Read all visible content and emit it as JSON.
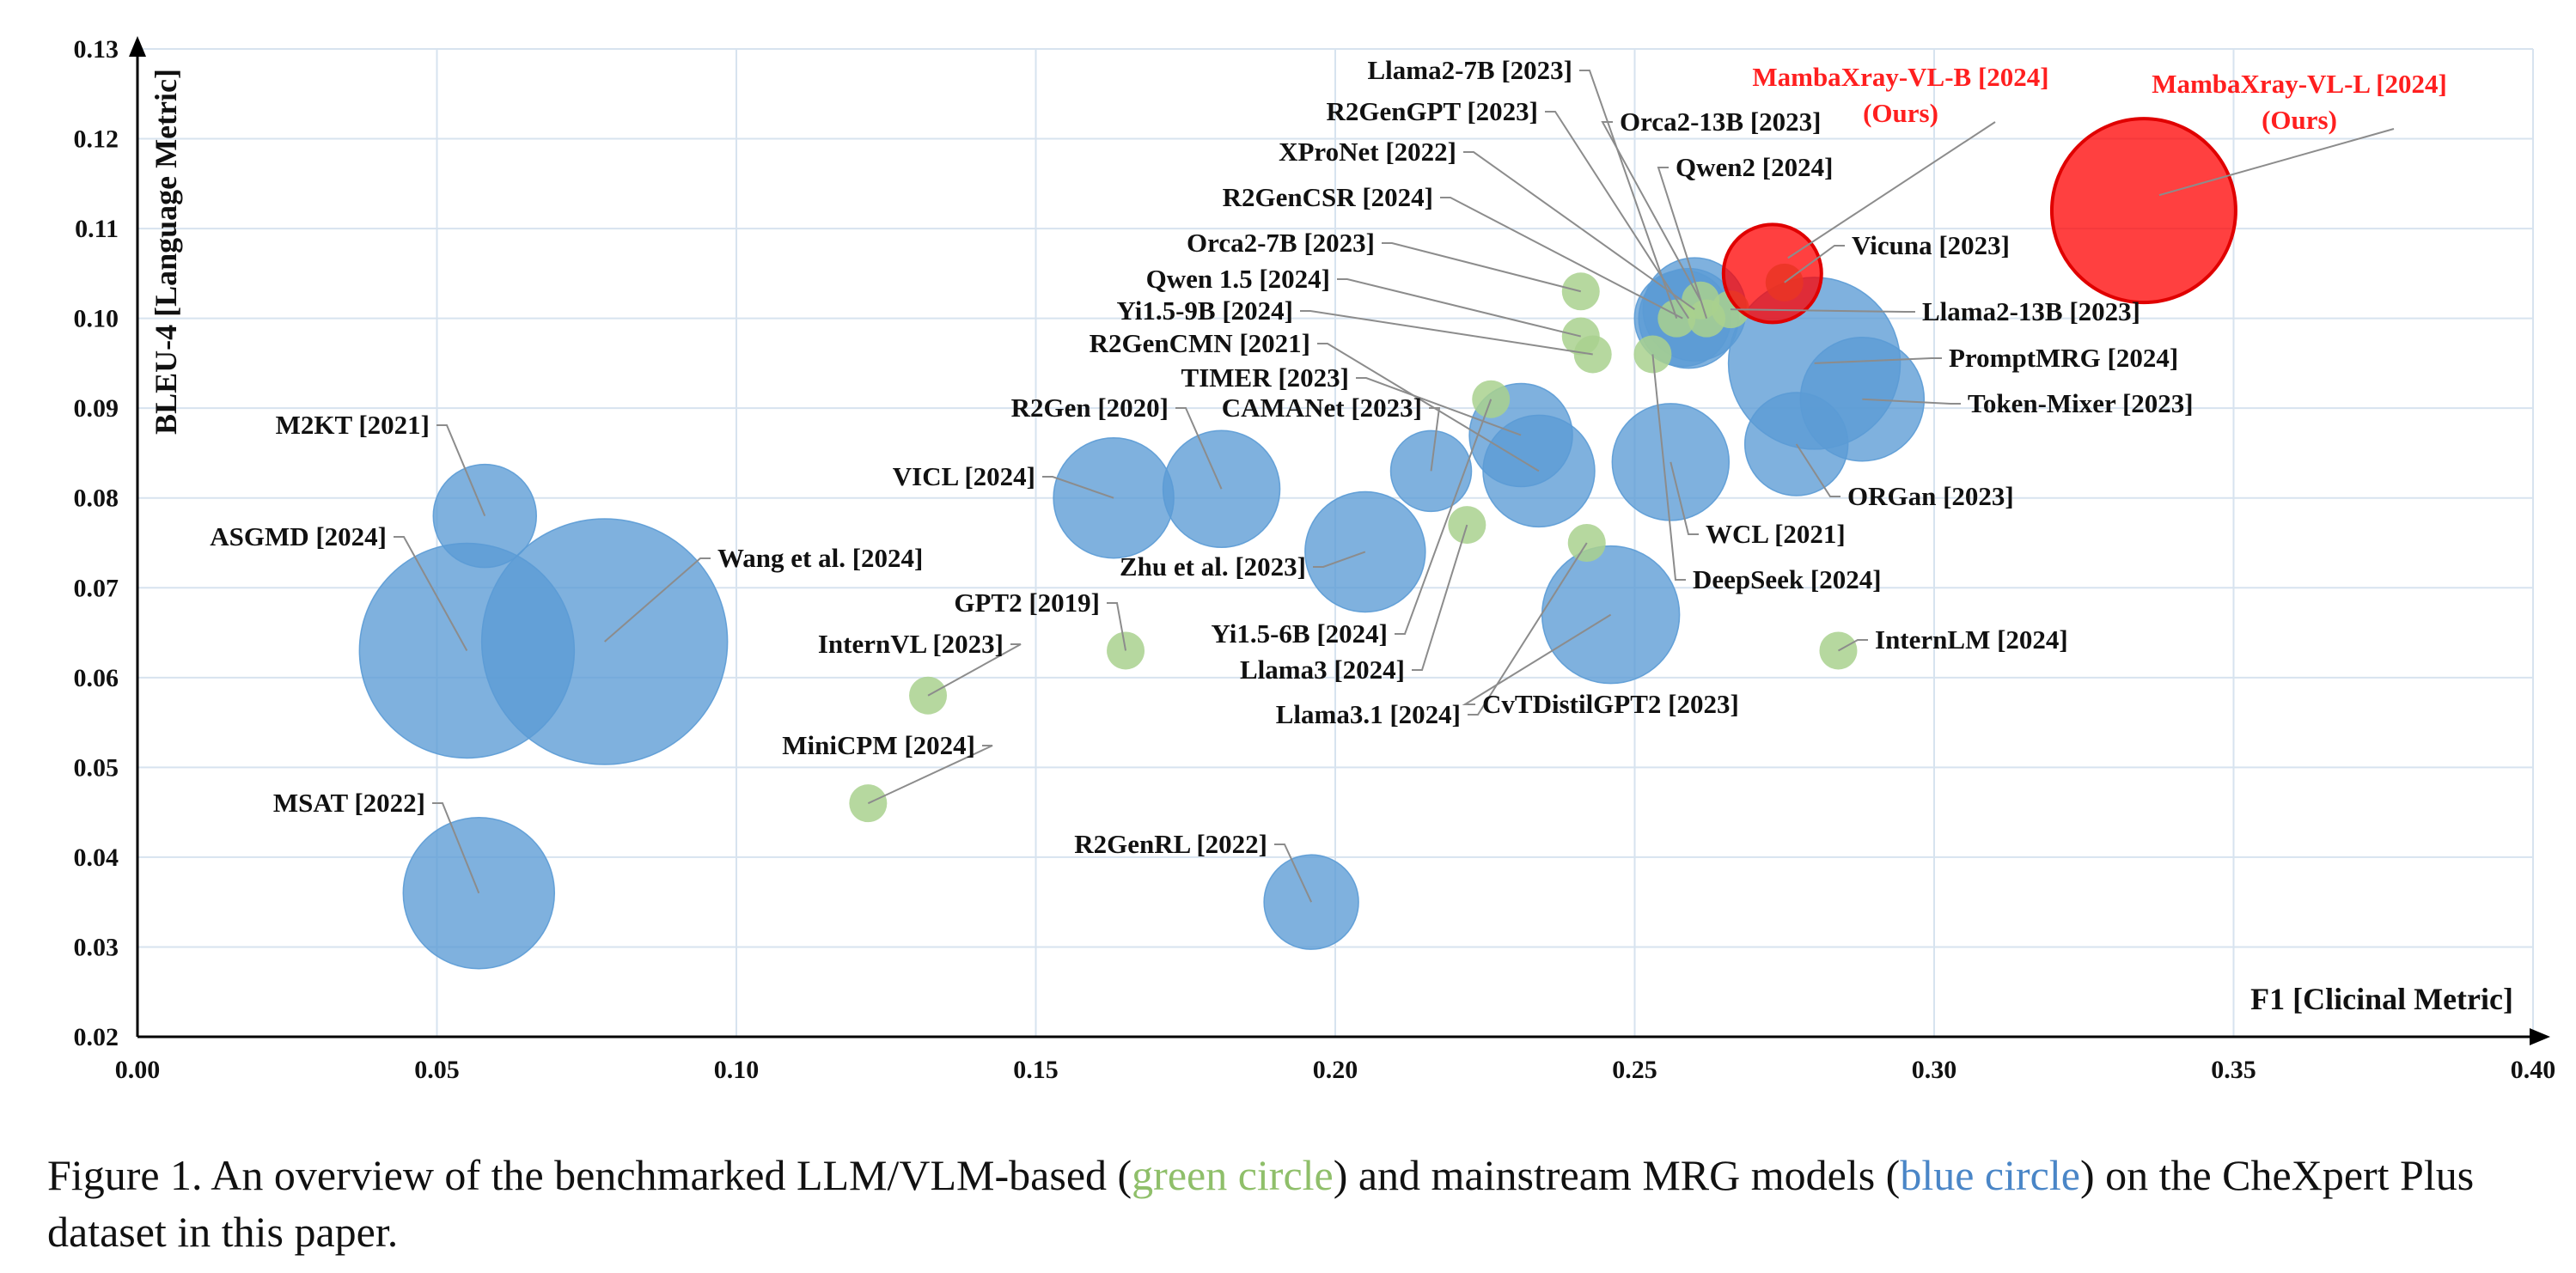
{
  "chart_data": {
    "type": "scatter",
    "xlabel": "F1 [Clicinal Metric]",
    "ylabel": "BLEU-4 [Language Metric]",
    "xlim": [
      0.0,
      0.4
    ],
    "ylim": [
      0.02,
      0.13
    ],
    "xticks": [
      "0.00",
      "0.05",
      "0.10",
      "0.15",
      "0.20",
      "0.25",
      "0.30",
      "0.35",
      "0.40"
    ],
    "yticks": [
      "0.02",
      "0.03",
      "0.04",
      "0.05",
      "0.06",
      "0.07",
      "0.08",
      "0.09",
      "0.10",
      "0.11",
      "0.12",
      "0.13"
    ],
    "grid": true,
    "colors": {
      "green": "#a9d18e",
      "blue": "#5b9bd5",
      "red": "#ff0000"
    },
    "points": [
      {
        "label": "M2KT [2021]",
        "x": 0.058,
        "y": 0.078,
        "size": 60,
        "group": "blue"
      },
      {
        "label": "ASGMD [2024]",
        "x": 0.055,
        "y": 0.063,
        "size": 125,
        "group": "blue"
      },
      {
        "label": "Wang et al. [2024]",
        "x": 0.078,
        "y": 0.064,
        "size": 143,
        "group": "blue"
      },
      {
        "label": "MSAT [2022]",
        "x": 0.057,
        "y": 0.036,
        "size": 88,
        "group": "blue"
      },
      {
        "label": "VICL [2024]",
        "x": 0.163,
        "y": 0.08,
        "size": 70,
        "group": "blue"
      },
      {
        "label": "R2Gen [2020]",
        "x": 0.181,
        "y": 0.081,
        "size": 68,
        "group": "blue"
      },
      {
        "label": "CAMANet [2023]",
        "x": 0.216,
        "y": 0.083,
        "size": 47,
        "group": "blue"
      },
      {
        "label": "Zhu et al. [2023]",
        "x": 0.205,
        "y": 0.074,
        "size": 70,
        "group": "blue"
      },
      {
        "label": "R2GenRL [2022]",
        "x": 0.196,
        "y": 0.035,
        "size": 55,
        "group": "blue"
      },
      {
        "label": "TIMER [2023]",
        "x": 0.231,
        "y": 0.087,
        "size": 60,
        "group": "blue"
      },
      {
        "label": "R2GenCMN [2021]",
        "x": 0.234,
        "y": 0.083,
        "size": 65,
        "group": "blue"
      },
      {
        "label": "CvTDistilGPT2 [2023]",
        "x": 0.246,
        "y": 0.067,
        "size": 80,
        "group": "blue"
      },
      {
        "label": "WCL [2021]",
        "x": 0.256,
        "y": 0.084,
        "size": 68,
        "group": "blue"
      },
      {
        "label": "R2GenGPT [2023]",
        "x": 0.259,
        "y": 0.1,
        "size": 58,
        "group": "blue"
      },
      {
        "label": "XProNet [2022]",
        "x": 0.26,
        "y": 0.101,
        "size": 60,
        "group": "blue"
      },
      {
        "label": "R2GenCSR [2024]",
        "x": 0.258,
        "y": 0.1,
        "size": 56,
        "group": "blue"
      },
      {
        "label": "ORGan [2023]",
        "x": 0.277,
        "y": 0.086,
        "size": 60,
        "group": "blue"
      },
      {
        "label": "PromptMRG [2024]",
        "x": 0.28,
        "y": 0.095,
        "size": 100,
        "group": "blue"
      },
      {
        "label": "Token-Mixer [2023]",
        "x": 0.288,
        "y": 0.091,
        "size": 72,
        "group": "blue"
      },
      {
        "label": "Orca2-7B [2023]",
        "x": 0.241,
        "y": 0.103,
        "size": 22,
        "group": "green"
      },
      {
        "label": "Qwen 1.5 [2024]",
        "x": 0.241,
        "y": 0.098,
        "size": 22,
        "group": "green"
      },
      {
        "label": "Yi1.5-9B [2024]",
        "x": 0.243,
        "y": 0.096,
        "size": 22,
        "group": "green"
      },
      {
        "label": "Yi1.5-6B [2024]",
        "x": 0.226,
        "y": 0.091,
        "size": 22,
        "group": "green"
      },
      {
        "label": "Llama3 [2024]",
        "x": 0.222,
        "y": 0.077,
        "size": 22,
        "group": "green"
      },
      {
        "label": "Llama3.1 [2024]",
        "x": 0.242,
        "y": 0.075,
        "size": 22,
        "group": "green"
      },
      {
        "label": "DeepSeek [2024]",
        "x": 0.253,
        "y": 0.096,
        "size": 22,
        "group": "green"
      },
      {
        "label": "Llama2-7B [2023]",
        "x": 0.257,
        "y": 0.1,
        "size": 22,
        "group": "green"
      },
      {
        "label": "Orca2-13B [2023]",
        "x": 0.261,
        "y": 0.102,
        "size": 22,
        "group": "green"
      },
      {
        "label": "Qwen2 [2024]",
        "x": 0.262,
        "y": 0.1,
        "size": 22,
        "group": "green"
      },
      {
        "label": "Llama2-13B [2023]",
        "x": 0.266,
        "y": 0.101,
        "size": 22,
        "group": "green"
      },
      {
        "label": "Vicuna [2023]",
        "x": 0.275,
        "y": 0.104,
        "size": 22,
        "group": "green"
      },
      {
        "label": "GPT2 [2019]",
        "x": 0.165,
        "y": 0.063,
        "size": 22,
        "group": "green"
      },
      {
        "label": "InternVL [2023]",
        "x": 0.132,
        "y": 0.058,
        "size": 22,
        "group": "green"
      },
      {
        "label": "MiniCPM [2024]",
        "x": 0.122,
        "y": 0.046,
        "size": 22,
        "group": "green"
      },
      {
        "label": "InternLM [2024]",
        "x": 0.284,
        "y": 0.063,
        "size": 22,
        "group": "green"
      },
      {
        "label": "MambaXray-VL-B [2024]",
        "note": "(Ours)",
        "x": 0.273,
        "y": 0.105,
        "size": 57,
        "group": "red"
      },
      {
        "label": "MambaXray-VL-L [2024]",
        "note": "(Ours)",
        "x": 0.335,
        "y": 0.112,
        "size": 107,
        "group": "red"
      }
    ]
  },
  "caption": {
    "prefix": "Figure 1. An overview of the benchmarked LLM/VLM-based (",
    "green": "green circle",
    "middle": ") and mainstream MRG models (",
    "blue": "blue circle",
    "suffix": ") on the CheXpert Plus dataset in this paper."
  }
}
